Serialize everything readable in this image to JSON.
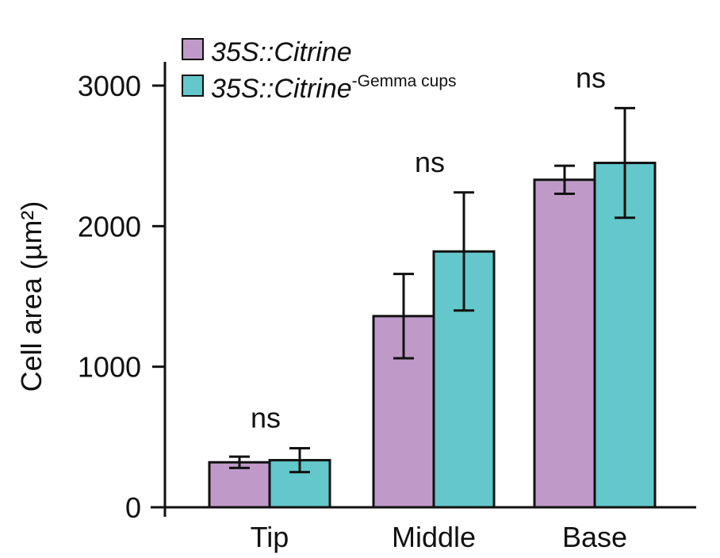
{
  "chart_data": {
    "type": "bar",
    "title": "",
    "xlabel": "",
    "ylabel": "Cell area (µm²)",
    "ylim": [
      0,
      3000
    ],
    "yticks": [
      0,
      1000,
      2000,
      3000
    ],
    "categories": [
      "Tip",
      "Middle",
      "Base"
    ],
    "series": [
      {
        "name": "35S::Citrine",
        "name_sup": "",
        "color": "#bf9ac9",
        "values": [
          320,
          1360,
          2330
        ],
        "errors": [
          40,
          300,
          100
        ]
      },
      {
        "name": "35S::Citrine",
        "name_sup": "-Gemma cups",
        "color": "#63c7cc",
        "values": [
          335,
          1820,
          2450
        ],
        "errors": [
          85,
          420,
          390
        ]
      }
    ],
    "annotations": [
      "ns",
      "ns",
      "ns"
    ],
    "legend_position": "top-left",
    "grid": false
  }
}
